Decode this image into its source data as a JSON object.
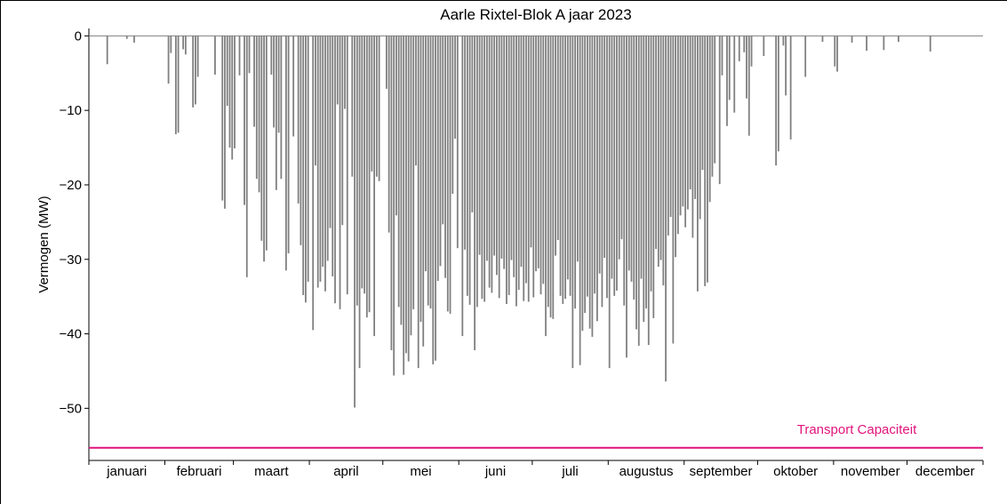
{
  "chart_data": {
    "type": "bar",
    "title": "Aarle Rixtel-Blok A jaar 2023",
    "xlabel": "",
    "ylabel": "Vermogen (MW)",
    "ylim": [
      -57,
      1
    ],
    "yticks": [
      0,
      -10,
      -20,
      -30,
      -40,
      -50
    ],
    "ytick_labels": [
      "0",
      "−10",
      "−20",
      "−30",
      "−40",
      "−50"
    ],
    "months": [
      "januari",
      "februari",
      "maart",
      "april",
      "mei",
      "juni",
      "juli",
      "augustus",
      "september",
      "oktober",
      "november",
      "december"
    ],
    "x_unit": "day of year",
    "bar_color": "#808080",
    "capacity": {
      "label": "Transport Capaciteit",
      "value": -55.3,
      "color": "#e0147c"
    },
    "daily_min": [
      {
        "day": 8,
        "value": -3.8
      },
      {
        "day": 16,
        "value": -0.4
      },
      {
        "day": 19,
        "value": -0.9
      },
      {
        "day": 33,
        "value": -6.4
      },
      {
        "day": 34,
        "value": -2.3
      },
      {
        "day": 36,
        "value": -13.2
      },
      {
        "day": 37,
        "value": -13.0
      },
      {
        "day": 39,
        "value": -1.8
      },
      {
        "day": 40,
        "value": -2.5
      },
      {
        "day": 43,
        "value": -9.6
      },
      {
        "day": 44,
        "value": -9.2
      },
      {
        "day": 45,
        "value": -5.5
      },
      {
        "day": 52,
        "value": -5.2
      },
      {
        "day": 55,
        "value": -22.1
      },
      {
        "day": 56,
        "value": -23.2
      },
      {
        "day": 57,
        "value": -9.4
      },
      {
        "day": 58,
        "value": -15.0
      },
      {
        "day": 59,
        "value": -16.6
      },
      {
        "day": 60,
        "value": -15.1
      },
      {
        "day": 62,
        "value": -5.3
      },
      {
        "day": 64,
        "value": -22.7
      },
      {
        "day": 65,
        "value": -32.4
      },
      {
        "day": 66,
        "value": -5.0
      },
      {
        "day": 68,
        "value": -12.2
      },
      {
        "day": 69,
        "value": -19.2
      },
      {
        "day": 70,
        "value": -21.0
      },
      {
        "day": 71,
        "value": -27.5
      },
      {
        "day": 72,
        "value": -30.3
      },
      {
        "day": 73,
        "value": -28.8
      },
      {
        "day": 75,
        "value": -5.2
      },
      {
        "day": 76,
        "value": -12.3
      },
      {
        "day": 77,
        "value": -20.7
      },
      {
        "day": 78,
        "value": -13.0
      },
      {
        "day": 79,
        "value": -19.2
      },
      {
        "day": 81,
        "value": -31.5
      },
      {
        "day": 82,
        "value": -29.2
      },
      {
        "day": 84,
        "value": -13.5
      },
      {
        "day": 86,
        "value": -22.5
      },
      {
        "day": 87,
        "value": -28.1
      },
      {
        "day": 88,
        "value": -34.8
      },
      {
        "day": 89,
        "value": -35.8
      },
      {
        "day": 90,
        "value": -33.0
      },
      {
        "day": 92,
        "value": -39.5
      },
      {
        "day": 93,
        "value": -17.4
      },
      {
        "day": 94,
        "value": -33.8
      },
      {
        "day": 95,
        "value": -33.0
      },
      {
        "day": 96,
        "value": -31.0
      },
      {
        "day": 97,
        "value": -34.3
      },
      {
        "day": 98,
        "value": -30.2
      },
      {
        "day": 99,
        "value": -25.8
      },
      {
        "day": 100,
        "value": -32.3
      },
      {
        "day": 101,
        "value": -35.9
      },
      {
        "day": 102,
        "value": -9.2
      },
      {
        "day": 103,
        "value": -36.7
      },
      {
        "day": 104,
        "value": -25.4
      },
      {
        "day": 105,
        "value": -9.8
      },
      {
        "day": 106,
        "value": -34.7
      },
      {
        "day": 108,
        "value": -18.9
      },
      {
        "day": 109,
        "value": -49.9
      },
      {
        "day": 110,
        "value": -36.2
      },
      {
        "day": 111,
        "value": -44.6
      },
      {
        "day": 112,
        "value": -33.9
      },
      {
        "day": 113,
        "value": -34.6
      },
      {
        "day": 114,
        "value": -37.8
      },
      {
        "day": 115,
        "value": -37.1
      },
      {
        "day": 116,
        "value": -18.2
      },
      {
        "day": 117,
        "value": -40.3
      },
      {
        "day": 118,
        "value": -18.9
      },
      {
        "day": 119,
        "value": -19.5
      },
      {
        "day": 122,
        "value": -7.1
      },
      {
        "day": 123,
        "value": -26.4
      },
      {
        "day": 124,
        "value": -42.2
      },
      {
        "day": 125,
        "value": -45.6
      },
      {
        "day": 126,
        "value": -24.1
      },
      {
        "day": 127,
        "value": -36.4
      },
      {
        "day": 128,
        "value": -38.8
      },
      {
        "day": 129,
        "value": -45.5
      },
      {
        "day": 130,
        "value": -42.6
      },
      {
        "day": 131,
        "value": -43.7
      },
      {
        "day": 132,
        "value": -40.2
      },
      {
        "day": 133,
        "value": -36.7
      },
      {
        "day": 134,
        "value": -17.4
      },
      {
        "day": 135,
        "value": -44.6
      },
      {
        "day": 136,
        "value": -38.4
      },
      {
        "day": 137,
        "value": -41.7
      },
      {
        "day": 138,
        "value": -31.6
      },
      {
        "day": 139,
        "value": -36.2
      },
      {
        "day": 140,
        "value": -36.6
      },
      {
        "day": 141,
        "value": -44.1
      },
      {
        "day": 142,
        "value": -43.6
      },
      {
        "day": 143,
        "value": -32.9
      },
      {
        "day": 144,
        "value": -30.9
      },
      {
        "day": 145,
        "value": -25.3
      },
      {
        "day": 146,
        "value": -32.5
      },
      {
        "day": 147,
        "value": -37.0
      },
      {
        "day": 148,
        "value": -37.3
      },
      {
        "day": 149,
        "value": -21.2
      },
      {
        "day": 150,
        "value": -13.8
      },
      {
        "day": 151,
        "value": -28.5
      },
      {
        "day": 153,
        "value": -40.3
      },
      {
        "day": 154,
        "value": -28.7
      },
      {
        "day": 155,
        "value": -34.9
      },
      {
        "day": 156,
        "value": -36.1
      },
      {
        "day": 157,
        "value": -23.7
      },
      {
        "day": 158,
        "value": -42.2
      },
      {
        "day": 159,
        "value": -36.4
      },
      {
        "day": 160,
        "value": -29.4
      },
      {
        "day": 161,
        "value": -35.3
      },
      {
        "day": 162,
        "value": -35.7
      },
      {
        "day": 163,
        "value": -30.2
      },
      {
        "day": 164,
        "value": -33.8
      },
      {
        "day": 165,
        "value": -34.5
      },
      {
        "day": 166,
        "value": -29.5
      },
      {
        "day": 167,
        "value": -32.1
      },
      {
        "day": 168,
        "value": -35.2
      },
      {
        "day": 169,
        "value": -29.9
      },
      {
        "day": 170,
        "value": -31.3
      },
      {
        "day": 171,
        "value": -36.0
      },
      {
        "day": 172,
        "value": -34.8
      },
      {
        "day": 173,
        "value": -30.1
      },
      {
        "day": 174,
        "value": -32.4
      },
      {
        "day": 175,
        "value": -36.3
      },
      {
        "day": 176,
        "value": -34.1
      },
      {
        "day": 177,
        "value": -31.0
      },
      {
        "day": 178,
        "value": -35.6
      },
      {
        "day": 179,
        "value": -33.2
      },
      {
        "day": 180,
        "value": -35.7
      },
      {
        "day": 181,
        "value": -28.4
      },
      {
        "day": 182,
        "value": -35.1
      },
      {
        "day": 183,
        "value": -31.6
      },
      {
        "day": 184,
        "value": -31.2
      },
      {
        "day": 185,
        "value": -34.7
      },
      {
        "day": 186,
        "value": -33.3
      },
      {
        "day": 187,
        "value": -40.3
      },
      {
        "day": 188,
        "value": -36.4
      },
      {
        "day": 189,
        "value": -37.8
      },
      {
        "day": 190,
        "value": -38.0
      },
      {
        "day": 191,
        "value": -29.5
      },
      {
        "day": 192,
        "value": -27.4
      },
      {
        "day": 193,
        "value": -34.9
      },
      {
        "day": 194,
        "value": -36.0
      },
      {
        "day": 195,
        "value": -35.3
      },
      {
        "day": 196,
        "value": -32.7
      },
      {
        "day": 197,
        "value": -34.9
      },
      {
        "day": 198,
        "value": -44.6
      },
      {
        "day": 199,
        "value": -36.6
      },
      {
        "day": 200,
        "value": -30.3
      },
      {
        "day": 201,
        "value": -44.2
      },
      {
        "day": 202,
        "value": -39.6
      },
      {
        "day": 203,
        "value": -37.2
      },
      {
        "day": 204,
        "value": -35.0
      },
      {
        "day": 205,
        "value": -39.3
      },
      {
        "day": 206,
        "value": -40.4
      },
      {
        "day": 207,
        "value": -34.6
      },
      {
        "day": 208,
        "value": -38.3
      },
      {
        "day": 209,
        "value": -31.9
      },
      {
        "day": 210,
        "value": -36.4
      },
      {
        "day": 211,
        "value": -29.8
      },
      {
        "day": 212,
        "value": -35.2
      },
      {
        "day": 213,
        "value": -44.6
      },
      {
        "day": 214,
        "value": -32.6
      },
      {
        "day": 215,
        "value": -34.9
      },
      {
        "day": 216,
        "value": -34.2
      },
      {
        "day": 217,
        "value": -30.0
      },
      {
        "day": 218,
        "value": -27.3
      },
      {
        "day": 219,
        "value": -36.2
      },
      {
        "day": 220,
        "value": -43.2
      },
      {
        "day": 221,
        "value": -31.5
      },
      {
        "day": 222,
        "value": -33.0
      },
      {
        "day": 223,
        "value": -35.4
      },
      {
        "day": 224,
        "value": -39.4
      },
      {
        "day": 225,
        "value": -41.6
      },
      {
        "day": 226,
        "value": -32.6
      },
      {
        "day": 227,
        "value": -38.4
      },
      {
        "day": 228,
        "value": -36.6
      },
      {
        "day": 229,
        "value": -41.5
      },
      {
        "day": 230,
        "value": -34.3
      },
      {
        "day": 231,
        "value": -37.9
      },
      {
        "day": 232,
        "value": -28.6
      },
      {
        "day": 233,
        "value": -31.0
      },
      {
        "day": 234,
        "value": -30.1
      },
      {
        "day": 235,
        "value": -33.5
      },
      {
        "day": 236,
        "value": -46.4
      },
      {
        "day": 237,
        "value": -26.8
      },
      {
        "day": 238,
        "value": -24.3
      },
      {
        "day": 239,
        "value": -41.3
      },
      {
        "day": 240,
        "value": -29.7
      },
      {
        "day": 241,
        "value": -26.6
      },
      {
        "day": 242,
        "value": -24.1
      },
      {
        "day": 243,
        "value": -22.9
      },
      {
        "day": 244,
        "value": -25.7
      },
      {
        "day": 245,
        "value": -23.3
      },
      {
        "day": 246,
        "value": -20.6
      },
      {
        "day": 247,
        "value": -27.1
      },
      {
        "day": 248,
        "value": -21.9
      },
      {
        "day": 249,
        "value": -34.3
      },
      {
        "day": 250,
        "value": -24.6
      },
      {
        "day": 251,
        "value": -18.0
      },
      {
        "day": 252,
        "value": -33.6
      },
      {
        "day": 253,
        "value": -33.1
      },
      {
        "day": 254,
        "value": -22.3
      },
      {
        "day": 255,
        "value": -18.9
      },
      {
        "day": 256,
        "value": -17.1
      },
      {
        "day": 258,
        "value": -19.9
      },
      {
        "day": 259,
        "value": -5.3
      },
      {
        "day": 261,
        "value": -12.1
      },
      {
        "day": 262,
        "value": -8.6
      },
      {
        "day": 264,
        "value": -10.3
      },
      {
        "day": 266,
        "value": -3.4
      },
      {
        "day": 268,
        "value": -2.2
      },
      {
        "day": 269,
        "value": -8.4
      },
      {
        "day": 270,
        "value": -13.4
      },
      {
        "day": 271,
        "value": -4.1
      },
      {
        "day": 276,
        "value": -2.7
      },
      {
        "day": 281,
        "value": -17.4
      },
      {
        "day": 282,
        "value": -15.5
      },
      {
        "day": 284,
        "value": -1.3
      },
      {
        "day": 285,
        "value": -8.0
      },
      {
        "day": 287,
        "value": -13.9
      },
      {
        "day": 293,
        "value": -5.5
      },
      {
        "day": 300,
        "value": -0.8
      },
      {
        "day": 305,
        "value": -4.1
      },
      {
        "day": 306,
        "value": -4.8
      },
      {
        "day": 312,
        "value": -0.9
      },
      {
        "day": 318,
        "value": -2.0
      },
      {
        "day": 325,
        "value": -1.9
      },
      {
        "day": 331,
        "value": -0.8
      },
      {
        "day": 344,
        "value": -2.1
      }
    ]
  }
}
